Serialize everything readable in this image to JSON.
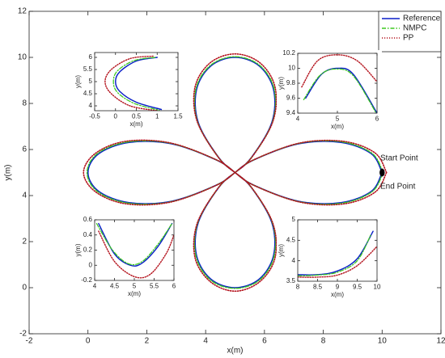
{
  "chart_data": [
    {
      "type": "line",
      "xlabel": "x(m)",
      "ylabel": "y(m)",
      "legend": "upper right",
      "xlim": [
        -2,
        12
      ],
      "ylim": [
        -2,
        12
      ],
      "xticks": [
        -2,
        0,
        2,
        4,
        6,
        8,
        10,
        12
      ],
      "yticks": [
        -2,
        0,
        2,
        4,
        6,
        8,
        10,
        12
      ],
      "annotations": [
        "Start Point",
        "End Point"
      ],
      "series": [
        {
          "name": "Reference",
          "color": "#0a1fc8",
          "style": "solid",
          "x": [
            10,
            9.63,
            8.6,
            7.17,
            5.66,
            5,
            4.44,
            3.75,
            3.69,
            4.18,
            5,
            5.82,
            6.31,
            6.25,
            5.56,
            5,
            4.34,
            2.83,
            1.4,
            0.37,
            0,
            0.37,
            1.4,
            2.83,
            4.34,
            5,
            5.56,
            6.25,
            6.31,
            5.82,
            5,
            4.18,
            3.69,
            3.75,
            4.44,
            5,
            5.66,
            7.17,
            8.6,
            9.63,
            10
          ],
          "values": [
            5,
            5.82,
            6.31,
            6.25,
            5.56,
            5,
            4.34,
            2.83,
            1.4,
            0.37,
            0,
            0.37,
            1.4,
            2.83,
            4.34,
            5,
            5.56,
            6.25,
            6.31,
            5.82,
            5,
            4.18,
            3.69,
            3.75,
            4.44,
            5,
            5.66,
            7.17,
            8.6,
            9.63,
            10,
            9.63,
            8.6,
            7.17,
            5.66,
            5,
            4.44,
            3.75,
            3.69,
            4.18,
            5
          ]
        },
        {
          "name": "NMPC",
          "color": "#3cc81e",
          "style": "dashdot",
          "x": [
            10.03,
            9.66,
            8.63,
            7.19,
            5.67,
            5,
            4.43,
            3.73,
            3.67,
            4.17,
            5,
            5.83,
            6.33,
            6.27,
            5.57,
            5,
            4.33,
            2.81,
            1.37,
            0.33,
            -0.03,
            0.33,
            1.37,
            2.81,
            4.33,
            5,
            5.57,
            6.27,
            6.33,
            5.83,
            5,
            4.17,
            3.67,
            3.73,
            4.43,
            5,
            5.67,
            7.19,
            8.63,
            9.66,
            10.03
          ],
          "values": [
            5,
            5.83,
            6.33,
            6.27,
            5.57,
            5,
            4.33,
            2.81,
            1.37,
            0.33,
            -0.03,
            0.33,
            1.37,
            2.81,
            4.33,
            5,
            5.57,
            6.27,
            6.33,
            5.83,
            5,
            4.17,
            3.67,
            3.73,
            4.43,
            5,
            5.67,
            7.19,
            8.63,
            9.66,
            10.03,
            9.66,
            8.63,
            7.19,
            5.67,
            5,
            4.43,
            3.73,
            3.67,
            4.17,
            5
          ]
        },
        {
          "name": "PP",
          "color": "#b4141e",
          "style": "dotted",
          "x": [
            10.15,
            9.76,
            8.71,
            7.23,
            5.68,
            5,
            4.42,
            3.71,
            3.64,
            4.16,
            5,
            5.84,
            6.36,
            6.29,
            5.58,
            5,
            4.32,
            2.78,
            1.3,
            0.26,
            -0.15,
            0.26,
            1.3,
            2.78,
            4.32,
            5,
            5.58,
            6.29,
            6.36,
            5.85,
            5,
            4.15,
            3.64,
            3.71,
            4.42,
            5,
            5.68,
            7.23,
            8.71,
            9.76,
            10.15
          ],
          "values": [
            5,
            5.85,
            6.35,
            6.29,
            5.58,
            5,
            4.32,
            2.78,
            1.3,
            0.26,
            -0.15,
            0.26,
            1.3,
            2.78,
            4.32,
            5,
            5.58,
            6.29,
            6.36,
            5.84,
            5,
            4.16,
            3.64,
            3.71,
            4.42,
            5,
            5.68,
            7.23,
            8.71,
            9.76,
            10.15,
            9.76,
            8.71,
            7.23,
            5.68,
            5,
            4.42,
            3.71,
            3.64,
            4.15,
            5
          ]
        }
      ]
    },
    {
      "type": "line",
      "xlabel": "x(m)",
      "ylabel": "y(m)",
      "xlim": [
        -0.5,
        1.5
      ],
      "ylim": [
        3.8,
        6.2
      ],
      "xticks": [
        -0.5,
        0,
        0.5,
        1,
        1.5
      ],
      "yticks": [
        4,
        4.5,
        5,
        5.5,
        6
      ],
      "series": [
        {
          "color": "#0a1fc8",
          "style": "solid",
          "x": [
            1.0,
            0.5,
            0.1,
            0.0,
            0.1,
            0.5,
            1.1
          ],
          "values": [
            6.0,
            5.85,
            5.4,
            5.0,
            4.6,
            4.15,
            3.85
          ]
        },
        {
          "color": "#3cc81e",
          "style": "dashdot",
          "x": [
            0.95,
            0.45,
            0.05,
            -0.05,
            0.05,
            0.45,
            1.05
          ],
          "values": [
            6.0,
            5.87,
            5.45,
            5.0,
            4.55,
            4.1,
            3.82
          ]
        },
        {
          "color": "#b4141e",
          "style": "dotted",
          "x": [
            0.9,
            0.35,
            -0.1,
            -0.25,
            -0.1,
            0.35,
            1.0
          ],
          "values": [
            6.05,
            5.95,
            5.5,
            5.0,
            4.5,
            4.0,
            3.8
          ]
        }
      ]
    },
    {
      "type": "line",
      "xlabel": "x(m)",
      "ylabel": "y(m)",
      "xlim": [
        4,
        6
      ],
      "ylim": [
        9.4,
        10.2
      ],
      "xticks": [
        4,
        5,
        6
      ],
      "yticks": [
        9.4,
        9.6,
        9.8,
        10,
        10.2
      ],
      "series": [
        {
          "color": "#0a1fc8",
          "style": "solid",
          "x": [
            4.2,
            4.6,
            5,
            5.4,
            6
          ],
          "values": [
            9.6,
            9.92,
            10,
            9.92,
            9.4
          ]
        },
        {
          "color": "#3cc81e",
          "style": "dashdot",
          "x": [
            4.15,
            4.55,
            4.95,
            5.4,
            6
          ],
          "values": [
            9.58,
            9.9,
            9.99,
            9.9,
            9.38
          ]
        },
        {
          "color": "#b4141e",
          "style": "dotted",
          "x": [
            4.1,
            4.5,
            5,
            5.5,
            6
          ],
          "values": [
            9.75,
            10.1,
            10.18,
            10.1,
            9.82
          ]
        }
      ]
    },
    {
      "type": "line",
      "xlabel": "x(m)",
      "ylabel": "y(m)",
      "xlim": [
        4,
        6
      ],
      "ylim": [
        -0.2,
        0.6
      ],
      "xticks": [
        4,
        4.5,
        5,
        5.5,
        6
      ],
      "yticks": [
        -0.2,
        0,
        0.2,
        0.4,
        0.6
      ],
      "series": [
        {
          "color": "#0a1fc8",
          "style": "solid",
          "x": [
            4.1,
            4.5,
            4.9,
            5.2,
            5.6,
            5.95
          ],
          "values": [
            0.55,
            0.15,
            0.0,
            0.03,
            0.25,
            0.55
          ]
        },
        {
          "color": "#3cc81e",
          "style": "dashdot",
          "x": [
            4.05,
            4.45,
            4.85,
            5.2,
            5.6,
            5.95
          ],
          "values": [
            0.55,
            0.2,
            0.02,
            0.05,
            0.28,
            0.55
          ]
        },
        {
          "color": "#b4141e",
          "style": "dotted",
          "x": [
            4.1,
            4.5,
            5.0,
            5.4,
            5.8,
            6.0
          ],
          "values": [
            0.45,
            0.05,
            -0.15,
            -0.12,
            0.15,
            0.4
          ]
        }
      ]
    },
    {
      "type": "line",
      "xlabel": "x(m)",
      "ylabel": "y(m)",
      "xlim": [
        8,
        10
      ],
      "ylim": [
        3.5,
        5
      ],
      "xticks": [
        8,
        8.5,
        9,
        9.5,
        10
      ],
      "yticks": [
        3.5,
        4,
        4.5,
        5
      ],
      "series": [
        {
          "color": "#0a1fc8",
          "style": "solid",
          "x": [
            8,
            8.5,
            9,
            9.5,
            9.9
          ],
          "values": [
            3.66,
            3.66,
            3.75,
            4.05,
            4.72
          ]
        },
        {
          "color": "#3cc81e",
          "style": "dashdot",
          "x": [
            8,
            8.5,
            9,
            9.5,
            9.85
          ],
          "values": [
            3.63,
            3.65,
            3.72,
            4.0,
            4.65
          ]
        },
        {
          "color": "#b4141e",
          "style": "dotted",
          "x": [
            8,
            8.5,
            9,
            9.5,
            10
          ],
          "values": [
            3.6,
            3.6,
            3.65,
            3.88,
            4.35
          ]
        }
      ]
    }
  ]
}
